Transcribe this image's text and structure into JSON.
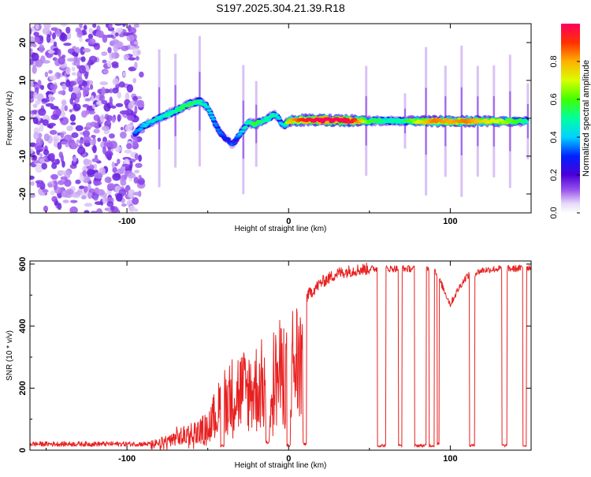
{
  "chart_data": [
    {
      "type": "heatmap",
      "title": "S197.2025.304.21.39.R18",
      "xlabel": "Height of straight line (km)",
      "ylabel": "Frequency (Hz)",
      "xlim": [
        -160,
        150
      ],
      "ylim": [
        -25,
        25
      ],
      "xticks": [
        -100,
        0,
        100
      ],
      "yticks": [
        -20,
        -10,
        0,
        10,
        20
      ],
      "xtick_labels": [
        "-100",
        "0",
        "100"
      ],
      "ytick_labels": [
        "-20",
        "-10",
        "0",
        "10",
        "20"
      ],
      "colorbar": {
        "label": "Normalized spectral amplitude",
        "ticks": [
          0.0,
          0.2,
          0.4,
          0.6,
          0.8
        ],
        "tick_labels": [
          "0.0",
          "0.2",
          "0.4",
          "0.6",
          "0.8"
        ],
        "range": [
          0,
          1
        ],
        "colormap": "rainbow-white-purple-red"
      },
      "ridge": {
        "x": [
          -95,
          -90,
          -85,
          -80,
          -75,
          -70,
          -65,
          -60,
          -55,
          -50,
          -47,
          -45,
          -42,
          -40,
          -37,
          -35,
          -33,
          -30,
          -28,
          -25,
          -22,
          -20,
          -18,
          -15,
          -12,
          -10,
          -7,
          -5,
          -3,
          0,
          5,
          10,
          20,
          30,
          40,
          50,
          60,
          70,
          80,
          90,
          100,
          110,
          120,
          130,
          140,
          148
        ],
        "y": [
          -4,
          -2,
          -1,
          0,
          1,
          2,
          3,
          4,
          4.5,
          3,
          0,
          -2,
          -4,
          -5,
          -6,
          -7,
          -6,
          -4,
          -3,
          -1,
          -1.5,
          -1.5,
          -1,
          -0.5,
          0,
          1,
          0.5,
          -1,
          -2,
          -0.8,
          -0.6,
          -0.5,
          -0.5,
          -0.5,
          -0.6,
          -0.7,
          -0.7,
          -0.7,
          -0.8,
          -0.8,
          -0.8,
          -0.8,
          -0.8,
          -0.8,
          -0.8,
          -0.8
        ],
        "amplitude": [
          0.35,
          0.4,
          0.45,
          0.45,
          0.5,
          0.5,
          0.55,
          0.55,
          0.5,
          0.45,
          0.4,
          0.35,
          0.35,
          0.3,
          0.3,
          0.35,
          0.3,
          0.4,
          0.45,
          0.5,
          0.55,
          0.6,
          0.55,
          0.5,
          0.5,
          0.5,
          0.45,
          0.4,
          0.4,
          0.75,
          0.85,
          0.95,
          1.0,
          1.0,
          0.95,
          0.6,
          0.5,
          0.5,
          0.7,
          0.85,
          0.8,
          0.85,
          0.75,
          0.7,
          0.6,
          0.5
        ]
      },
      "noise_region": {
        "x": [
          -160,
          -95
        ],
        "y": [
          -25,
          25
        ],
        "amplitude": [
          0.05,
          0.18
        ]
      },
      "vertical_streaks_x": [
        -80,
        -70,
        -55,
        -28,
        -20,
        48,
        72,
        85,
        97,
        107,
        117,
        127,
        137,
        148
      ]
    },
    {
      "type": "line",
      "title": "",
      "xlabel": "Height of straight line (km)",
      "ylabel": "SNR (10 * v/v)",
      "xlim": [
        -160,
        150
      ],
      "ylim": [
        0,
        610
      ],
      "xticks": [
        -100,
        0,
        100
      ],
      "yticks": [
        0,
        200,
        400,
        600
      ],
      "xtick_labels": [
        "-100",
        "0",
        "100"
      ],
      "ytick_labels": [
        "0",
        "200",
        "400",
        "600"
      ],
      "color": "#ff0000",
      "envelope": {
        "x": [
          -160,
          -120,
          -100,
          -85,
          -80,
          -70,
          -60,
          -50,
          -45,
          -40,
          -35,
          -30,
          -25,
          -20,
          -15,
          -10,
          -5,
          0,
          5,
          10,
          20,
          30,
          40,
          50,
          60,
          70,
          80,
          90,
          95,
          100,
          105,
          110,
          120,
          130,
          140,
          150
        ],
        "y": [
          20,
          20,
          20,
          20,
          30,
          60,
          80,
          110,
          180,
          250,
          280,
          300,
          300,
          320,
          340,
          360,
          380,
          410,
          450,
          490,
          540,
          570,
          580,
          585,
          585,
          585,
          585,
          585,
          530,
          470,
          520,
          560,
          580,
          585,
          585,
          590
        ]
      },
      "dropouts": [
        {
          "start": -42,
          "end": -40,
          "level": 10
        },
        {
          "start": -14,
          "end": -12,
          "level": 20
        },
        {
          "start": -1,
          "end": 1,
          "level": 10
        },
        {
          "start": 9,
          "end": 11,
          "level": 15
        },
        {
          "start": 55,
          "end": 60,
          "level": 10
        },
        {
          "start": 68,
          "end": 70,
          "level": 10
        },
        {
          "start": 78,
          "end": 85,
          "level": 10
        },
        {
          "start": 87,
          "end": 90,
          "level": 10
        },
        {
          "start": 92,
          "end": 93,
          "level": 15
        },
        {
          "start": 112,
          "end": 115,
          "level": 10
        },
        {
          "start": 132,
          "end": 135,
          "level": 10
        },
        {
          "start": 145,
          "end": 147,
          "level": 10
        }
      ]
    }
  ]
}
